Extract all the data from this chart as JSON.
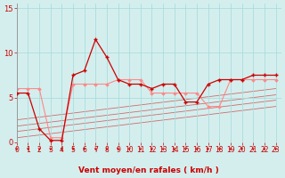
{
  "title": "",
  "xlabel": "Vent moyen/en rafales ( km/h )",
  "background_color": "#d4eeee",
  "grid_color": "#aadddd",
  "xlim": [
    0,
    23.5
  ],
  "ylim": [
    0,
    15.5
  ],
  "yticks": [
    0,
    5,
    10,
    15
  ],
  "xticks": [
    0,
    1,
    2,
    3,
    4,
    5,
    6,
    7,
    8,
    9,
    10,
    11,
    12,
    13,
    14,
    15,
    16,
    17,
    18,
    19,
    20,
    21,
    22,
    23
  ],
  "hours": [
    0,
    1,
    2,
    3,
    4,
    5,
    6,
    7,
    8,
    9,
    10,
    11,
    12,
    13,
    14,
    15,
    16,
    17,
    18,
    19,
    20,
    21,
    22,
    23
  ],
  "wind_mean": [
    5.5,
    5.5,
    1.5,
    0.2,
    0.2,
    7.5,
    8.0,
    11.5,
    9.5,
    7.0,
    6.5,
    6.5,
    6.0,
    6.5,
    6.5,
    4.5,
    4.5,
    6.5,
    7.0,
    7.0,
    7.0,
    7.5,
    7.5,
    7.5
  ],
  "wind_gust": [
    6.0,
    6.0,
    6.0,
    0.5,
    0.5,
    6.5,
    6.5,
    6.5,
    6.5,
    7.0,
    7.0,
    7.0,
    5.5,
    5.5,
    5.5,
    5.5,
    5.5,
    4.0,
    4.0,
    7.0,
    7.0,
    7.0,
    7.0,
    7.0
  ],
  "trend_lines": [
    [
      0.5,
      4.0
    ],
    [
      1.2,
      4.7
    ],
    [
      1.8,
      5.3
    ],
    [
      2.5,
      6.0
    ]
  ],
  "dark_red": "#cc0000",
  "light_red": "#ff8888",
  "xlabel_fontsize": 6.5,
  "tick_fontsize": 5.5
}
